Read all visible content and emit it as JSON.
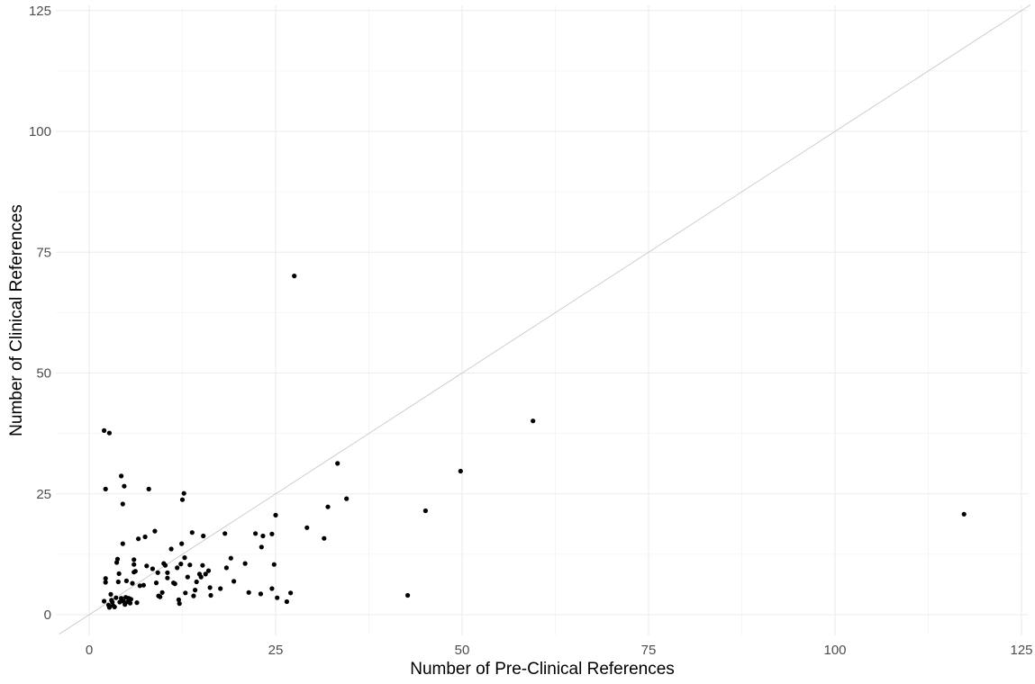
{
  "chart_data": {
    "type": "scatter",
    "title": "",
    "xlabel": "Number of Pre-Clinical References",
    "ylabel": "Number of Clinical References",
    "xlim": [
      -4,
      125
    ],
    "ylim": [
      -4,
      125
    ],
    "x_ticks": [
      0,
      25,
      50,
      75,
      100,
      125
    ],
    "x_tick_labels": [
      "0",
      "25",
      "50",
      "75",
      "100",
      "125"
    ],
    "y_ticks": [
      0,
      25,
      50,
      75,
      100,
      125
    ],
    "y_tick_labels": [
      "0",
      "25",
      "50",
      "75",
      "100",
      "125"
    ],
    "grid": true,
    "reference_line": "y = x",
    "colors": {
      "points": "#000000",
      "grid_major": "#ebebeb",
      "grid_minor": "#f4f4f4",
      "reference_line": "#c8c8c8"
    },
    "points": [
      {
        "x": 2.0,
        "y": 2.8
      },
      {
        "x": 2.2,
        "y": 6.7
      },
      {
        "x": 2.2,
        "y": 7.5
      },
      {
        "x": 2.6,
        "y": 2.0
      },
      {
        "x": 2.7,
        "y": 1.5
      },
      {
        "x": 2.9,
        "y": 4.2
      },
      {
        "x": 3.0,
        "y": 3.0
      },
      {
        "x": 3.1,
        "y": 2.6
      },
      {
        "x": 3.2,
        "y": 1.9
      },
      {
        "x": 3.4,
        "y": 1.6
      },
      {
        "x": 3.6,
        "y": 3.5
      },
      {
        "x": 3.7,
        "y": 10.8
      },
      {
        "x": 3.8,
        "y": 11.5
      },
      {
        "x": 3.9,
        "y": 6.8
      },
      {
        "x": 4.0,
        "y": 8.5
      },
      {
        "x": 4.1,
        "y": 2.6
      },
      {
        "x": 4.3,
        "y": 3.4
      },
      {
        "x": 4.5,
        "y": 14.7
      },
      {
        "x": 4.5,
        "y": 22.9
      },
      {
        "x": 4.6,
        "y": 2.8
      },
      {
        "x": 4.7,
        "y": 26.6
      },
      {
        "x": 4.8,
        "y": 2.1
      },
      {
        "x": 4.9,
        "y": 3.6
      },
      {
        "x": 5.0,
        "y": 7.0
      },
      {
        "x": 5.2,
        "y": 2.7
      },
      {
        "x": 5.3,
        "y": 3.4
      },
      {
        "x": 5.5,
        "y": 2.4
      },
      {
        "x": 5.6,
        "y": 3.2
      },
      {
        "x": 5.8,
        "y": 6.5
      },
      {
        "x": 6.0,
        "y": 8.8
      },
      {
        "x": 6.0,
        "y": 10.4
      },
      {
        "x": 6.0,
        "y": 11.4
      },
      {
        "x": 6.2,
        "y": 9.0
      },
      {
        "x": 6.4,
        "y": 2.5
      },
      {
        "x": 6.6,
        "y": 15.7
      },
      {
        "x": 6.8,
        "y": 6.0
      },
      {
        "x": 7.3,
        "y": 6.1
      },
      {
        "x": 7.5,
        "y": 16.1
      },
      {
        "x": 7.7,
        "y": 10.1
      },
      {
        "x": 8.0,
        "y": 26.0
      },
      {
        "x": 8.5,
        "y": 9.5
      },
      {
        "x": 8.8,
        "y": 17.3
      },
      {
        "x": 9.0,
        "y": 6.6
      },
      {
        "x": 9.2,
        "y": 8.7
      },
      {
        "x": 9.3,
        "y": 3.9
      },
      {
        "x": 9.5,
        "y": 3.7
      },
      {
        "x": 9.8,
        "y": 4.6
      },
      {
        "x": 10.0,
        "y": 10.6
      },
      {
        "x": 10.2,
        "y": 10.2
      },
      {
        "x": 10.5,
        "y": 8.7
      },
      {
        "x": 10.5,
        "y": 7.6
      },
      {
        "x": 11.0,
        "y": 13.6
      },
      {
        "x": 11.3,
        "y": 6.6
      },
      {
        "x": 11.5,
        "y": 6.4
      },
      {
        "x": 11.8,
        "y": 9.7
      },
      {
        "x": 12.0,
        "y": 3.1
      },
      {
        "x": 12.1,
        "y": 2.3
      },
      {
        "x": 12.3,
        "y": 10.5
      },
      {
        "x": 12.4,
        "y": 14.7
      },
      {
        "x": 12.5,
        "y": 23.8
      },
      {
        "x": 12.7,
        "y": 25.1
      },
      {
        "x": 12.8,
        "y": 11.8
      },
      {
        "x": 12.9,
        "y": 4.5
      },
      {
        "x": 13.2,
        "y": 7.8
      },
      {
        "x": 13.5,
        "y": 10.3
      },
      {
        "x": 13.8,
        "y": 17.0
      },
      {
        "x": 14.0,
        "y": 3.9
      },
      {
        "x": 14.2,
        "y": 5.1
      },
      {
        "x": 14.4,
        "y": 6.8
      },
      {
        "x": 14.8,
        "y": 8.4
      },
      {
        "x": 15.0,
        "y": 7.8
      },
      {
        "x": 15.2,
        "y": 10.2
      },
      {
        "x": 15.3,
        "y": 16.3
      },
      {
        "x": 15.6,
        "y": 8.4
      },
      {
        "x": 16.0,
        "y": 9.1
      },
      {
        "x": 16.2,
        "y": 5.6
      },
      {
        "x": 16.3,
        "y": 4.0
      },
      {
        "x": 17.6,
        "y": 5.4
      },
      {
        "x": 18.2,
        "y": 16.8
      },
      {
        "x": 18.4,
        "y": 9.7
      },
      {
        "x": 19.0,
        "y": 11.7
      },
      {
        "x": 19.4,
        "y": 6.9
      },
      {
        "x": 20.9,
        "y": 10.6
      },
      {
        "x": 21.4,
        "y": 4.6
      },
      {
        "x": 22.3,
        "y": 16.8
      },
      {
        "x": 23.0,
        "y": 4.3
      },
      {
        "x": 23.1,
        "y": 14.0
      },
      {
        "x": 23.3,
        "y": 16.3
      },
      {
        "x": 24.5,
        "y": 16.7
      },
      {
        "x": 24.5,
        "y": 5.4
      },
      {
        "x": 24.8,
        "y": 10.4
      },
      {
        "x": 25.0,
        "y": 20.6
      },
      {
        "x": 25.2,
        "y": 3.5
      },
      {
        "x": 26.5,
        "y": 2.7
      },
      {
        "x": 27.0,
        "y": 4.5
      },
      {
        "x": 27.5,
        "y": 70.1
      },
      {
        "x": 29.2,
        "y": 18.0
      },
      {
        "x": 31.5,
        "y": 15.8
      },
      {
        "x": 32.0,
        "y": 22.3
      },
      {
        "x": 33.3,
        "y": 31.3
      },
      {
        "x": 34.5,
        "y": 24.0
      },
      {
        "x": 42.7,
        "y": 4.0
      },
      {
        "x": 45.1,
        "y": 21.5
      },
      {
        "x": 49.8,
        "y": 29.7
      },
      {
        "x": 59.5,
        "y": 40.1
      },
      {
        "x": 117.3,
        "y": 20.8
      },
      {
        "x": 2.0,
        "y": 38.1
      },
      {
        "x": 2.7,
        "y": 37.6
      },
      {
        "x": 2.2,
        "y": 26.0
      },
      {
        "x": 4.3,
        "y": 28.7
      }
    ]
  }
}
